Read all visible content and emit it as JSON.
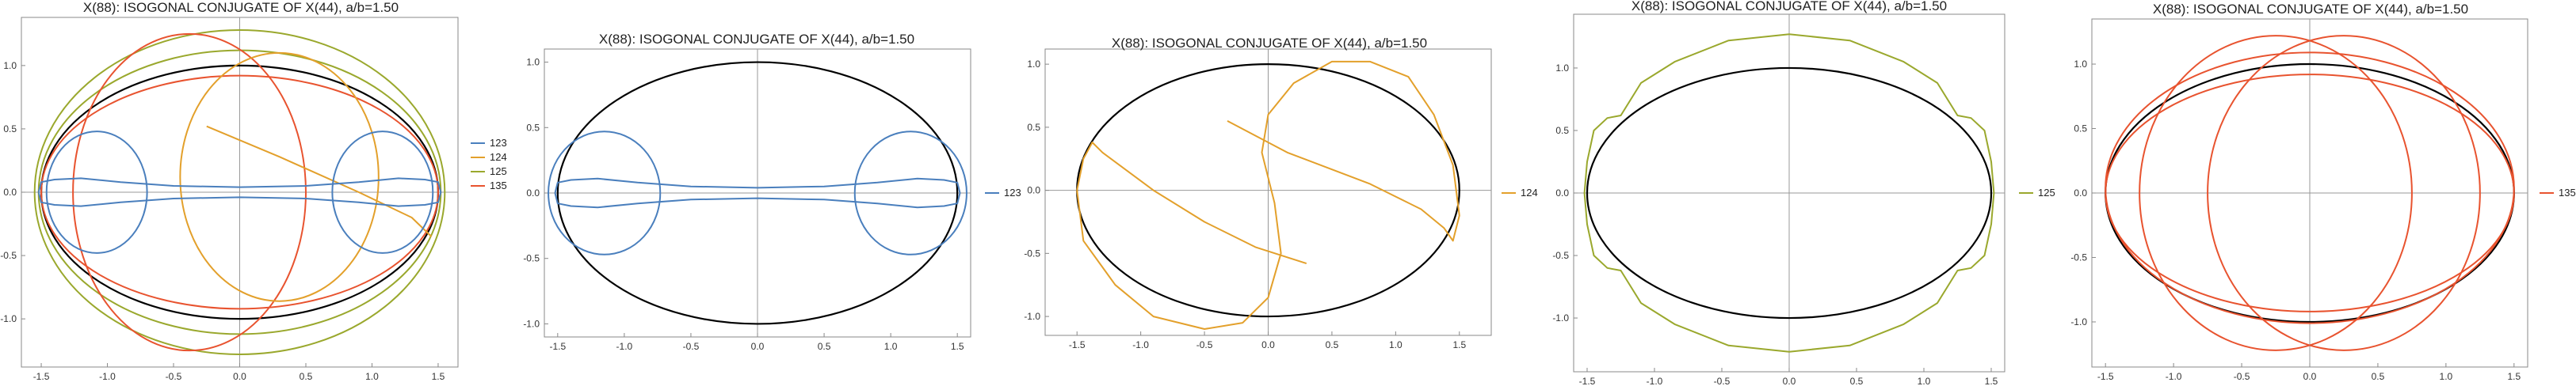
{
  "chart_data": [
    {
      "type": "line",
      "title": "X(88): ISOGONAL CONJUGATE OF X(44), a/b=1.50",
      "xlim": [
        -1.65,
        1.65
      ],
      "ylim": [
        -1.38,
        1.38
      ],
      "xticks": [
        "-1.5",
        "-1.0",
        "-0.5",
        "0.0",
        "0.5",
        "1.0",
        "1.5"
      ],
      "yticks": [
        "-1.0",
        "-0.5",
        "0.0",
        "0.5",
        "1.0"
      ],
      "legend": [
        "123",
        "124",
        "125",
        "135"
      ],
      "legend_position": "right"
    },
    {
      "type": "line",
      "title": "X(88): ISOGONAL CONJUGATE OF X(44), a/b=1.50",
      "xlim": [
        -1.6,
        1.6
      ],
      "ylim": [
        -1.1,
        1.1
      ],
      "xticks": [
        "-1.5",
        "-1.0",
        "-0.5",
        "0.0",
        "0.5",
        "1.0",
        "1.5"
      ],
      "yticks": [
        "-1.0",
        "-0.5",
        "0.0",
        "0.5",
        "1.0"
      ],
      "legend": [
        "123"
      ],
      "legend_position": "right"
    },
    {
      "type": "line",
      "title": "X(88): ISOGONAL CONJUGATE OF X(44), a/b=1.50",
      "xlim": [
        -1.75,
        1.75
      ],
      "ylim": [
        -1.15,
        1.12
      ],
      "xticks": [
        "-1.5",
        "-1.0",
        "-0.5",
        "0.0",
        "0.5",
        "1.0",
        "1.5"
      ],
      "yticks": [
        "-1.0",
        "-0.5",
        "0.0",
        "0.5",
        "1.0"
      ],
      "legend": [
        "124"
      ],
      "legend_position": "right"
    },
    {
      "type": "line",
      "title": "X(88): ISOGONAL CONJUGATE OF X(44), a/b=1.50",
      "xlim": [
        -1.6,
        1.6
      ],
      "ylim": [
        -1.43,
        1.43
      ],
      "xticks": [
        "-1.5",
        "-1.0",
        "-0.5",
        "0.0",
        "0.5",
        "1.0",
        "1.5"
      ],
      "yticks": [
        "-1.0",
        "-0.5",
        "0.0",
        "0.5",
        "1.0"
      ],
      "legend": [
        "125"
      ],
      "legend_position": "right"
    },
    {
      "type": "line",
      "title": "X(88): ISOGONAL CONJUGATE OF X(44), a/b=1.50",
      "xlim": [
        -1.6,
        1.6
      ],
      "ylim": [
        -1.35,
        1.35
      ],
      "xticks": [
        "-1.5",
        "-1.0",
        "-0.5",
        "0.0",
        "0.5",
        "1.0",
        "1.5"
      ],
      "yticks": [
        "-1.0",
        "-0.5",
        "0.0",
        "0.5",
        "1.0"
      ],
      "legend": [
        "135"
      ],
      "legend_position": "right"
    }
  ],
  "series_colors": {
    "123": "#4a7fbd",
    "124": "#e3a02b",
    "125": "#9aa82d",
    "135": "#e8532f",
    "ellipse": "#000000"
  }
}
